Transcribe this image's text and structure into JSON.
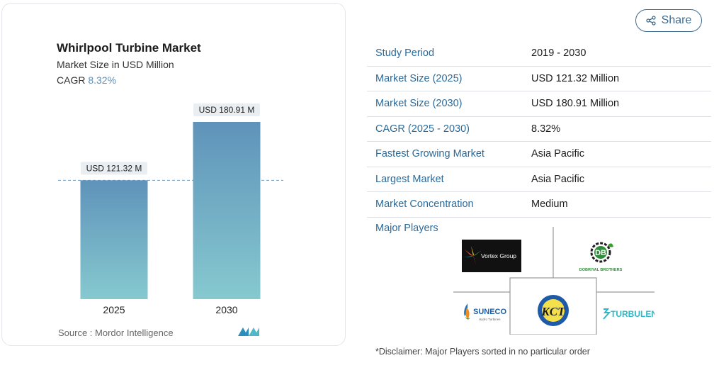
{
  "card": {
    "title": "Whirlpool Turbine Market",
    "subtitle": "Market Size in USD Million",
    "cagr_label": "CAGR",
    "cagr_value": "8.32%",
    "source": "Source : Mordor Intelligence"
  },
  "chart_data": {
    "type": "bar",
    "categories": [
      "2025",
      "2030"
    ],
    "values": [
      121.32,
      180.91
    ],
    "data_labels": [
      "USD 121.32 M",
      "USD 180.91 M"
    ],
    "reference_line": 121.32,
    "title": "Whirlpool Turbine Market",
    "subtitle": "Market Size in USD Million",
    "xlabel": "",
    "ylabel": "",
    "grid": false,
    "color_top": "#5f93ba",
    "color_bottom": "#86c9cf"
  },
  "share": {
    "label": "Share",
    "icon": "share-icon"
  },
  "facts": [
    {
      "key": "Study Period",
      "value": "2019 - 2030"
    },
    {
      "key": "Market Size (2025)",
      "value": "USD 121.32 Million"
    },
    {
      "key": "Market Size (2030)",
      "value": "USD 180.91 Million"
    },
    {
      "key": "CAGR (2025 - 2030)",
      "value": "8.32%"
    },
    {
      "key": "Fastest Growing Market",
      "value": "Asia Pacific"
    },
    {
      "key": "Largest Market",
      "value": "Asia Pacific"
    },
    {
      "key": "Market Concentration",
      "value": "Medium"
    }
  ],
  "major_players": {
    "label": "Major Players",
    "logos": [
      "Vortex Group",
      "Dobriyal Brothers",
      "SUNECO",
      "KCT",
      "TURBULENT"
    ],
    "suneco_sub": "Hydro Turbines",
    "dobriyal_text": "DOBRIYAL BROTHERS"
  },
  "disclaimer": "*Disclaimer: Major Players sorted in no particular order",
  "colors": {
    "accent": "#2c6a99",
    "label_bg": "#e9eef2",
    "dashed": "#6f9cc2"
  }
}
